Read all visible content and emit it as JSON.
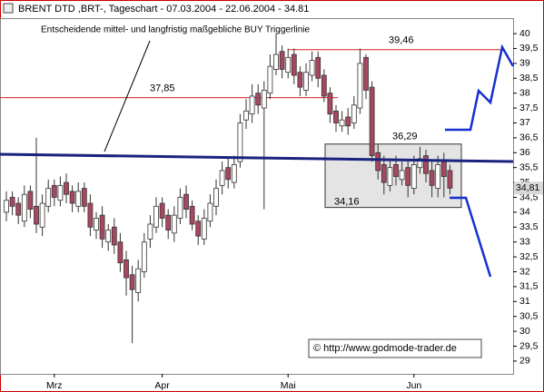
{
  "chart_data": {
    "type": "candlestick",
    "title": "BRENT DTD ,BRT-, Tageschart - 07.03.2004 - 22.06.2004 - 34.81",
    "categories": [
      null,
      null,
      null,
      null,
      null,
      null,
      null,
      null,
      "Mrz",
      null,
      null,
      null,
      null,
      null,
      null,
      null,
      null,
      null,
      null,
      null,
      null,
      null,
      null,
      null,
      null,
      null,
      "Apr",
      null,
      null,
      null,
      null,
      null,
      null,
      null,
      null,
      null,
      null,
      null,
      null,
      null,
      null,
      null,
      null,
      null,
      null,
      null,
      null,
      "Mai",
      null,
      null,
      null,
      null,
      null,
      null,
      null,
      null,
      null,
      null,
      null,
      null,
      null,
      null,
      null,
      null,
      null,
      null,
      null,
      null,
      "Jun",
      null,
      null,
      null,
      null,
      null,
      null
    ],
    "open": [
      34.0,
      34.5,
      34.3,
      33.7,
      34.7,
      34.2,
      33.5,
      34.2,
      34.9,
      34.4,
      35.0,
      34.7,
      34.2,
      34.8,
      34.3,
      33.4,
      33.9,
      33.0,
      33.5,
      33.0,
      32.4,
      31.9,
      31.3,
      32.0,
      33.1,
      33.5,
      34.3,
      33.9,
      33.3,
      33.8,
      34.6,
      34.2,
      33.7,
      33.1,
      33.7,
      34.2,
      34.9,
      35.5,
      35.0,
      35.7,
      37.1,
      37.3,
      38.0,
      37.5,
      38.0,
      38.8,
      39.4,
      38.7,
      39.3,
      38.7,
      38.1,
      38.6,
      39.2,
      38.6,
      38.0,
      37.4,
      36.9,
      37.2,
      37.0,
      37.5,
      39.2,
      38.2,
      36.0,
      35.6,
      34.9,
      35.6,
      35.1,
      35.5,
      34.8,
      35.5,
      35.9,
      35.4,
      34.8,
      35.7,
      35.4
    ],
    "high": [
      34.7,
      34.7,
      34.5,
      34.9,
      34.9,
      36.5,
      34.6,
      35.1,
      35.1,
      35.2,
      35.3,
      34.9,
      35.0,
      35.0,
      34.6,
      34.0,
      34.2,
      33.6,
      33.8,
      33.3,
      32.7,
      32.2,
      32.4,
      33.3,
      33.9,
      34.5,
      34.5,
      34.1,
      34.2,
      34.8,
      34.9,
      34.4,
      33.9,
      34.1,
      34.6,
      35.1,
      35.7,
      35.8,
      35.9,
      37.3,
      37.8,
      38.3,
      38.3,
      38.4,
      39.3,
      40.0,
      39.6,
      39.5,
      39.5,
      38.9,
      39.0,
      39.4,
      39.4,
      38.8,
      38.2,
      37.6,
      37.4,
      37.5,
      37.9,
      39.5,
      39.3,
      38.4,
      36.3,
      35.9,
      35.8,
      35.9,
      35.7,
      35.8,
      35.9,
      36.2,
      36.1,
      35.7,
      35.9,
      36.0,
      35.6
    ],
    "low": [
      33.7,
      33.9,
      33.6,
      33.5,
      33.8,
      33.3,
      33.2,
      34.0,
      34.2,
      34.2,
      34.3,
      34.0,
      34.0,
      34.0,
      33.2,
      33.1,
      32.8,
      32.7,
      32.6,
      32.0,
      31.2,
      29.6,
      31.0,
      31.8,
      32.8,
      33.3,
      33.5,
      33.1,
      33.0,
      33.6,
      33.8,
      33.4,
      32.9,
      32.9,
      33.5,
      33.9,
      34.6,
      34.8,
      34.8,
      35.5,
      36.8,
      37.0,
      37.3,
      34.1,
      37.8,
      38.6,
      38.5,
      38.5,
      38.3,
      37.9,
      37.9,
      38.4,
      38.2,
      37.7,
      37.0,
      36.7,
      36.7,
      36.6,
      36.8,
      37.3,
      37.8,
      35.7,
      35.1,
      34.6,
      34.7,
      34.9,
      34.9,
      34.5,
      34.6,
      35.3,
      35.0,
      34.5,
      34.5,
      34.5,
      34.6
    ],
    "close": [
      34.4,
      34.2,
      33.9,
      34.6,
      34.1,
      33.6,
      34.3,
      34.8,
      34.5,
      34.9,
      34.6,
      34.3,
      34.7,
      34.2,
      33.5,
      33.8,
      33.1,
      33.4,
      32.9,
      32.3,
      31.8,
      31.4,
      32.1,
      33.0,
      33.6,
      34.2,
      33.8,
      33.4,
      33.9,
      34.5,
      34.1,
      33.6,
      33.2,
      33.8,
      34.3,
      34.8,
      35.4,
      35.1,
      35.6,
      37.0,
      37.4,
      37.9,
      37.6,
      38.1,
      38.9,
      39.3,
      38.8,
      39.2,
      38.6,
      38.2,
      38.7,
      39.1,
      38.5,
      37.9,
      37.3,
      37.0,
      37.1,
      36.9,
      37.6,
      39.0,
      38.1,
      35.9,
      35.4,
      35.0,
      35.5,
      35.2,
      35.4,
      34.9,
      35.6,
      35.8,
      35.3,
      34.9,
      35.6,
      35.2,
      34.81
    ],
    "up_color": "#ffffff",
    "down_color": "#a8475f",
    "ylim": [
      28.57,
      40.52
    ],
    "yticks": [
      29,
      {
        "value": 29.5,
        "label": "29,5"
      },
      30,
      {
        "value": 30.5,
        "label": "30,5"
      },
      31,
      {
        "value": 31.5,
        "label": "31,5"
      },
      32,
      {
        "value": 32.5,
        "label": "32,5"
      },
      33,
      {
        "value": 33.5,
        "label": "33,5"
      },
      34,
      {
        "value": 34.5,
        "label": "34,5"
      },
      35,
      {
        "value": 35.5,
        "label": "35,5"
      },
      36,
      {
        "value": 36.5,
        "label": "36,5"
      },
      37,
      {
        "value": 37.5,
        "label": "37,5"
      },
      38,
      {
        "value": 38.5,
        "label": "38,5"
      },
      39,
      {
        "value": 39.5,
        "label": "39,5"
      },
      40
    ],
    "last_value": {
      "value": 34.81,
      "label": "34,81"
    },
    "levels": [
      {
        "value": 37.85,
        "label": "37,85"
      },
      {
        "value": 39.46,
        "label": "39,46"
      }
    ],
    "box": {
      "top": {
        "value": 36.29,
        "label": "36,29"
      },
      "bottom": {
        "value": 34.16,
        "label": "34,16"
      }
    },
    "annotation": "Entscheidende mittel- und langfristig maßgebliche BUY Triggerlinie",
    "watermark": "© http://www.godmode-trader.de"
  }
}
